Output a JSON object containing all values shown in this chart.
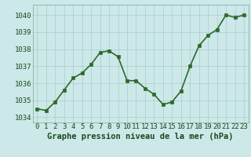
{
  "x": [
    0,
    1,
    2,
    3,
    4,
    5,
    6,
    7,
    8,
    9,
    10,
    11,
    12,
    13,
    14,
    15,
    16,
    17,
    18,
    19,
    20,
    21,
    22,
    23
  ],
  "y": [
    1034.5,
    1034.4,
    1034.9,
    1035.6,
    1036.3,
    1036.6,
    1037.1,
    1037.8,
    1037.9,
    1037.55,
    1036.15,
    1036.15,
    1035.7,
    1035.35,
    1034.75,
    1034.9,
    1035.55,
    1037.0,
    1038.2,
    1038.8,
    1039.15,
    1040.0,
    1039.85,
    1040.0
  ],
  "xlim": [
    -0.5,
    23.5
  ],
  "ylim": [
    1033.7,
    1040.6
  ],
  "yticks": [
    1034,
    1035,
    1036,
    1037,
    1038,
    1039,
    1040
  ],
  "xticks": [
    0,
    1,
    2,
    3,
    4,
    5,
    6,
    7,
    8,
    9,
    10,
    11,
    12,
    13,
    14,
    15,
    16,
    17,
    18,
    19,
    20,
    21,
    22,
    23
  ],
  "line_color": "#2d6a2d",
  "marker": "s",
  "marker_size": 2.5,
  "marker_color": "#2d6a2d",
  "bg_color": "#cce8e8",
  "grid_color": "#aacccc",
  "xlabel": "Graphe pression niveau de la mer (hPa)",
  "xlabel_color": "#1a4a1a",
  "xlabel_fontsize": 7.5,
  "tick_color": "#1a4a1a",
  "tick_fontsize": 6.5,
  "line_width": 1.2
}
